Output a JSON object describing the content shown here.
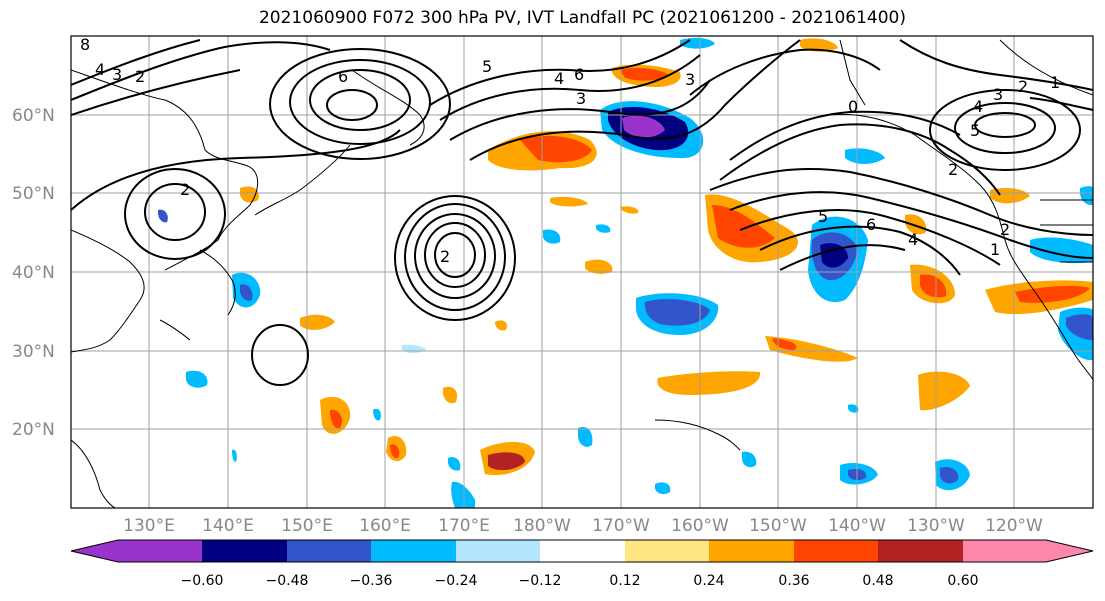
{
  "figure": {
    "title": "2021060900 F072 300 hPa PV, IVT Landfall PC (2021061200 - 2021061400)"
  },
  "axes": {
    "lat_labels": [
      "60°N",
      "50°N",
      "40°N",
      "30°N",
      "20°N"
    ],
    "lon_labels": [
      "130°E",
      "140°E",
      "150°E",
      "160°E",
      "170°E",
      "180°W",
      "170°W",
      "160°W",
      "150°W",
      "140°W",
      "130°W",
      "120°W"
    ]
  },
  "colorbar": {
    "colors": [
      "#9933cc",
      "#000080",
      "#3355cc",
      "#00bbff",
      "#b3e6ff",
      "#ffffff",
      "#ffe680",
      "#ffa500",
      "#ff4500",
      "#b22222",
      "#ff88aa"
    ],
    "tick_labels": [
      "−0.60",
      "−0.48",
      "−0.36",
      "−0.24",
      "−0.12",
      "0.12",
      "0.24",
      "0.36",
      "0.48",
      "0.60"
    ]
  },
  "contour_labels": [
    "8",
    "4",
    "3",
    "2",
    "6",
    "2",
    "5",
    "4",
    "6",
    "3",
    "2",
    "3",
    "0",
    "3",
    "2",
    "1",
    "4",
    "5",
    "2",
    "5",
    "6",
    "4",
    "2",
    "1"
  ]
}
